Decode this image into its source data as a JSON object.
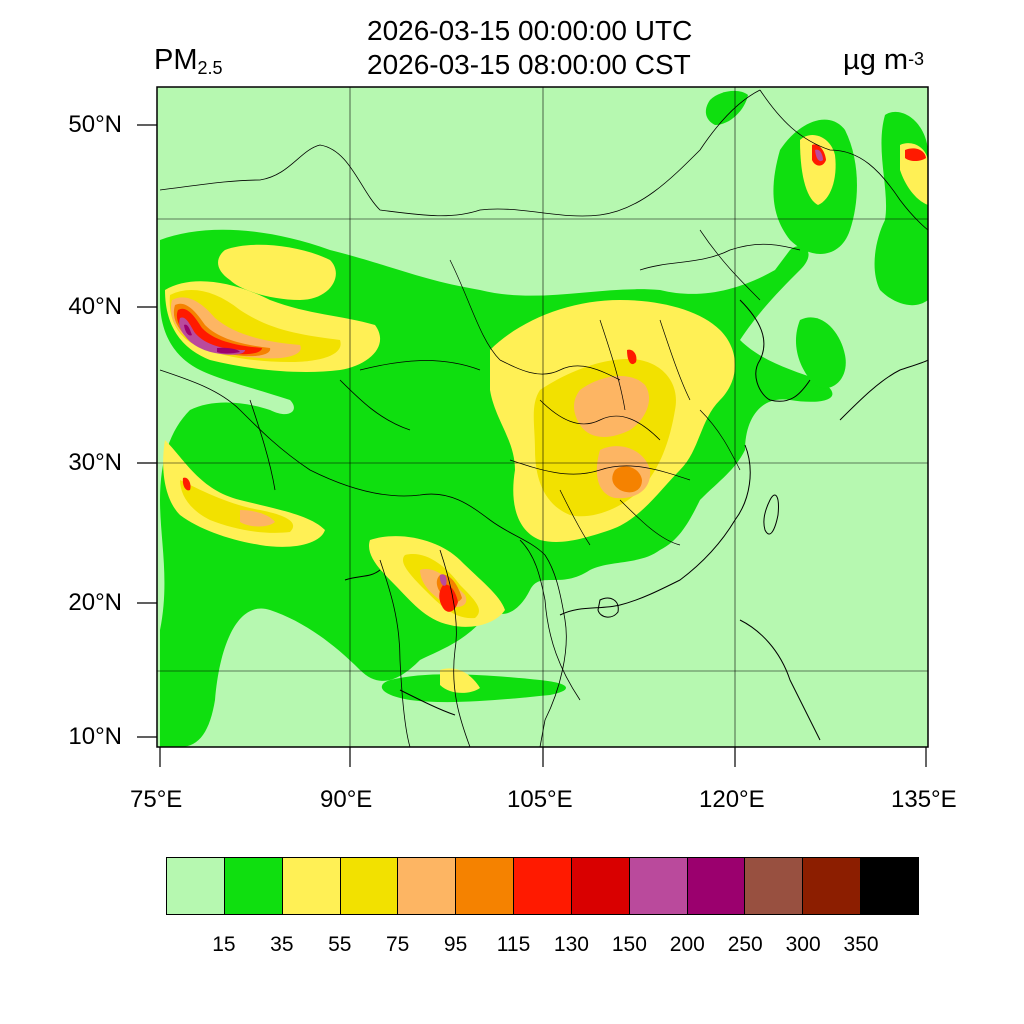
{
  "header": {
    "title_utc": "2026-03-15 00:00:00 UTC",
    "title_local": "2026-03-15 08:00:00 CST",
    "variable_main": "PM",
    "variable_sub": "2.5",
    "unit_main": "µg m",
    "unit_sup": "-3"
  },
  "axes": {
    "lat_labels": [
      "50°N",
      "40°N",
      "30°N",
      "20°N",
      "10°N"
    ],
    "lon_labels": [
      "75°E",
      "90°E",
      "105°E",
      "120°E",
      "135°E"
    ]
  },
  "map": {
    "extent": {
      "lon_min": 75,
      "lon_max": 135,
      "lat_min": 9,
      "lat_max": 52
    },
    "background_color": "#b6f8b0"
  },
  "colorbar": {
    "colors": [
      "#b6f8b0",
      "#0fdf0f",
      "#fff055",
      "#f2e100",
      "#fdb563",
      "#f58200",
      "#ff1a00",
      "#d90000",
      "#ba4a9c",
      "#9b006e",
      "#985040",
      "#8c1e00",
      "#000000"
    ],
    "labels": [
      "15",
      "35",
      "55",
      "75",
      "95",
      "115",
      "130",
      "150",
      "200",
      "250",
      "300",
      "350"
    ]
  }
}
